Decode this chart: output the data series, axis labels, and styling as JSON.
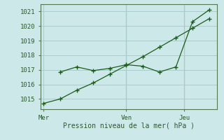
{
  "xlabel": "Pression niveau de la mer( hPa )",
  "bg_color": "#cce8e8",
  "grid_color": "#aacccc",
  "line_color": "#1a5c1a",
  "line1_x": [
    0,
    1,
    2,
    3,
    4,
    5,
    6,
    7,
    8,
    9,
    10
  ],
  "line1_y": [
    1014.7,
    1015.0,
    1015.6,
    1016.1,
    1016.7,
    1017.3,
    1017.9,
    1018.55,
    1019.2,
    1019.85,
    1020.5
  ],
  "line2_x": [
    1,
    2,
    3,
    4,
    5,
    6,
    7,
    8,
    9,
    10
  ],
  "line2_y": [
    1016.85,
    1017.2,
    1016.95,
    1017.1,
    1017.35,
    1017.25,
    1016.85,
    1017.2,
    1020.3,
    1021.1
  ],
  "xtick_positions": [
    0,
    5,
    8.5
  ],
  "xtick_labels": [
    "Mer",
    "Ven",
    "Jeu"
  ],
  "ytick_positions": [
    1015,
    1016,
    1017,
    1018,
    1019,
    1020,
    1021
  ],
  "ylim": [
    1014.3,
    1021.5
  ],
  "xlim": [
    -0.2,
    10.5
  ],
  "vline_x": [
    5,
    8.5
  ]
}
